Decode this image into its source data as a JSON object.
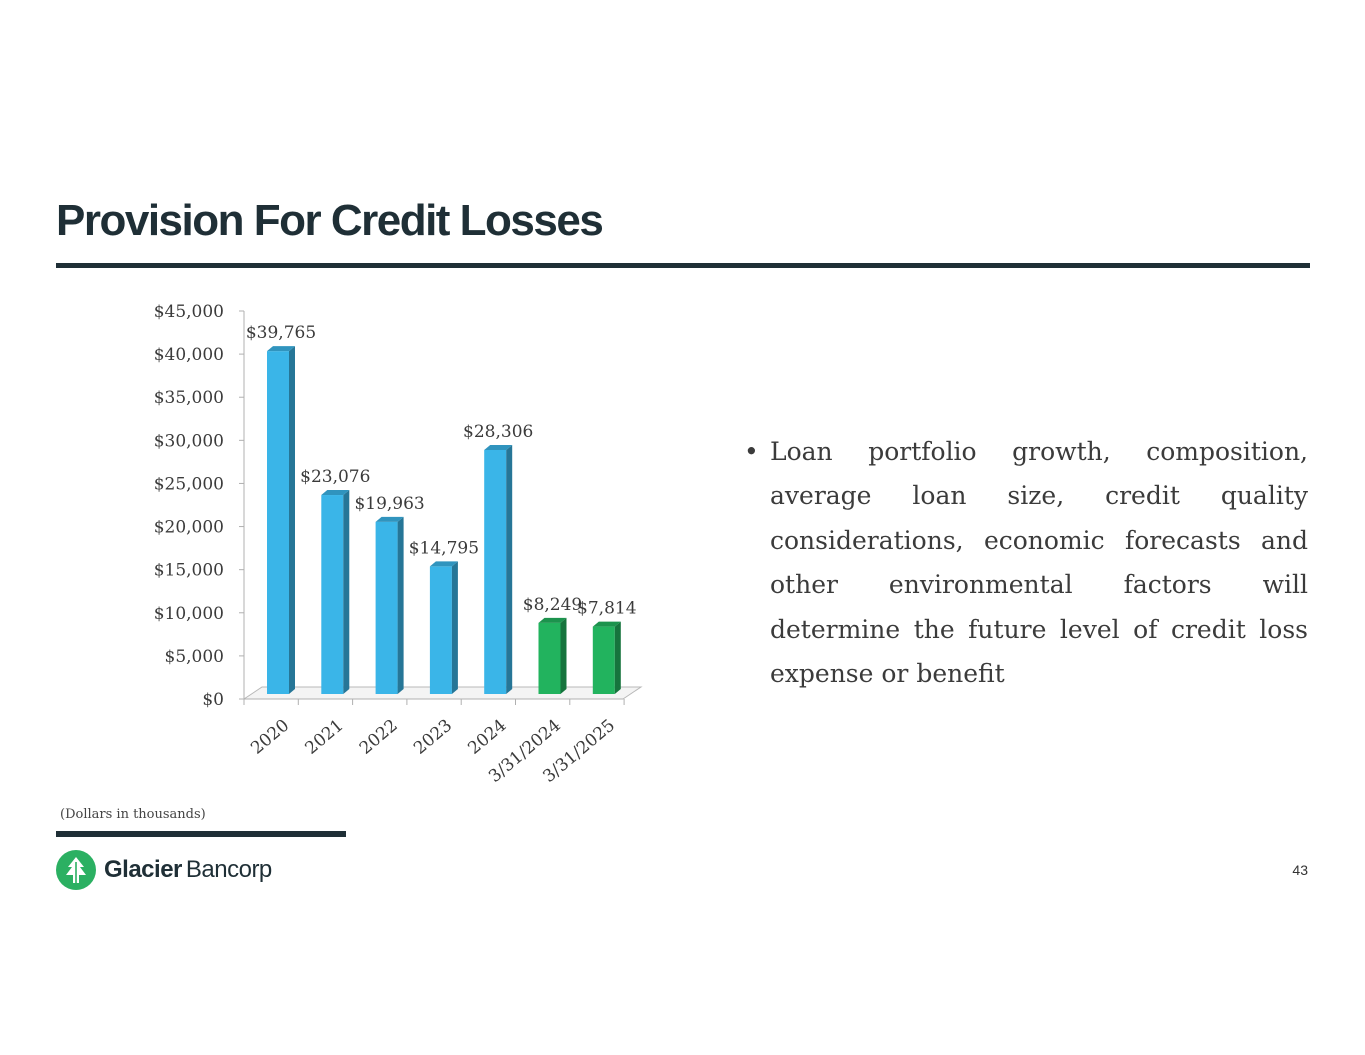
{
  "slide": {
    "title": "Provision For Credit Losses",
    "footnote": "(Dollars in thousands)",
    "page_number": "43",
    "bullet": "Loan portfolio growth, composition, average loan size, credit quality considerations, economic forecasts and other environmental factors will determine the future level of credit loss expense or benefit",
    "bullet_marker": "•"
  },
  "logo": {
    "name_bold": "Glacier",
    "name_light": "Bancorp",
    "mark_color": "#2bb062"
  },
  "chart_data": {
    "type": "bar",
    "title": "",
    "xlabel": "",
    "ylabel": "",
    "ylim": [
      0,
      45000
    ],
    "ytick_step": 5000,
    "ytick_labels": [
      "$0",
      "$5,000",
      "$10,000",
      "$15,000",
      "$20,000",
      "$25,000",
      "$30,000",
      "$35,000",
      "$40,000",
      "$45,000"
    ],
    "categories": [
      "2020",
      "2021",
      "2022",
      "2023",
      "2024",
      "3/31/2024",
      "3/31/2025"
    ],
    "values": [
      39765,
      23076,
      19963,
      14795,
      28306,
      8249,
      7814
    ],
    "data_labels": [
      "$39,765",
      "$23,076",
      "$19,963",
      "$14,795",
      "$28,306",
      "$8,249",
      "$7,814"
    ],
    "colors": [
      "#3ab5e8",
      "#3ab5e8",
      "#3ab5e8",
      "#3ab5e8",
      "#3ab5e8",
      "#22b35e",
      "#22b35e"
    ],
    "grid": false,
    "legend": "none",
    "style": "3d-column"
  }
}
